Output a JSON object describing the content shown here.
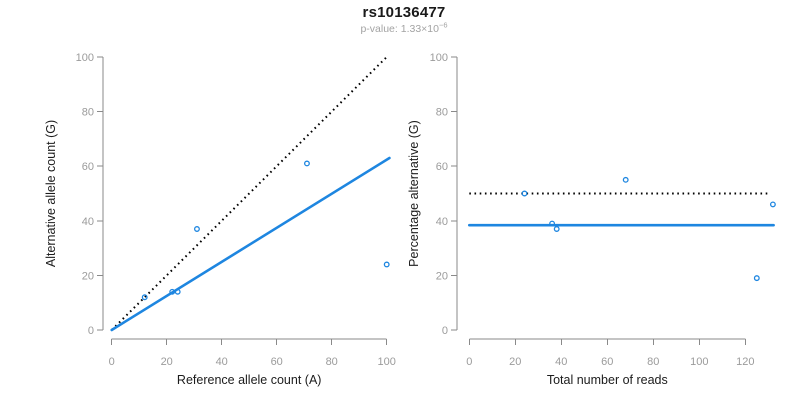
{
  "header": {
    "title": "rs10136477",
    "subtitle_prefix": "p-value: 1.33×10",
    "subtitle_exponent": "−6"
  },
  "colors": {
    "accent_blue": "#1e86e0",
    "reference_black": "#000000",
    "tick_gray": "#9b9b9b",
    "axis_gray": "#8a8a8a",
    "axis_label_black": "#1c1c1c",
    "subtitle_gray": "#a3a3a3",
    "background": "#ffffff"
  },
  "chart_data": [
    {
      "type": "scatter",
      "name": "reference-vs-alternative",
      "xlabel": "Reference allele count (A)",
      "ylabel": "Alternative allele count (G)",
      "xlim": [
        0,
        100
      ],
      "ylim": [
        0,
        100
      ],
      "xticks": [
        0,
        20,
        40,
        60,
        80,
        100
      ],
      "yticks": [
        0,
        20,
        40,
        60,
        80,
        100
      ],
      "grid": false,
      "legend": "none",
      "marker": "open-circle",
      "points": [
        [
          12,
          12
        ],
        [
          22,
          14
        ],
        [
          24,
          14
        ],
        [
          31,
          37
        ],
        [
          71,
          61
        ],
        [
          100,
          24
        ]
      ],
      "lines": [
        {
          "name": "identity-line",
          "style": "dotted",
          "color": "black",
          "from": [
            0,
            0
          ],
          "to": [
            100.3,
            100.3
          ]
        },
        {
          "name": "regression-line",
          "style": "solid",
          "color": "blue",
          "from": [
            0,
            0
          ],
          "to": [
            101,
            63
          ]
        }
      ]
    },
    {
      "type": "scatter",
      "name": "reads-vs-percentage",
      "xlabel": "Total number of reads",
      "ylabel": "Percentage alternative (G)",
      "xlim": [
        0,
        132
      ],
      "ylim": [
        0,
        100
      ],
      "xticks": [
        0,
        20,
        40,
        60,
        80,
        100,
        120
      ],
      "yticks": [
        0,
        20,
        40,
        60,
        80,
        100
      ],
      "grid": false,
      "legend": "none",
      "marker": "open-circle",
      "points": [
        [
          24,
          50
        ],
        [
          36,
          39
        ],
        [
          38,
          37
        ],
        [
          68,
          55
        ],
        [
          125,
          19
        ],
        [
          132,
          46
        ]
      ],
      "lines": [
        {
          "name": "expected-50-percent-line",
          "style": "dotted",
          "color": "black",
          "from": [
            0,
            50
          ],
          "to": [
            131,
            50
          ]
        },
        {
          "name": "mean-percentage-line",
          "style": "solid",
          "color": "blue",
          "from": [
            0,
            38.4
          ],
          "to": [
            132.3,
            38.4
          ]
        }
      ]
    }
  ]
}
